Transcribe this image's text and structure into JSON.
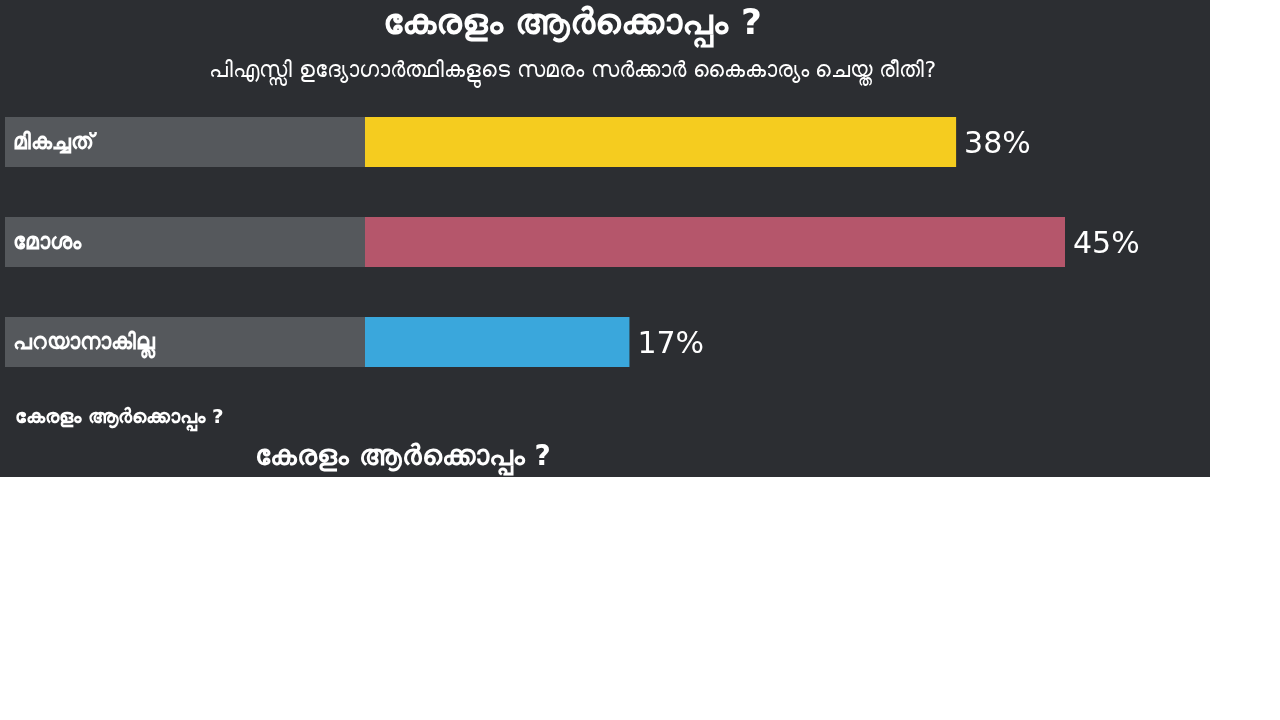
{
  "chart_data": {
    "type": "bar",
    "orientation": "horizontal",
    "title": "കേരളം ആർക്കൊപ്പം ?",
    "subtitle": "പിഎസ്സി ഉദ്യോഗാർത്ഥികളുടെ സമരം സർക്കാർ കൈകാര്യം ചെയ്ത രീതി?",
    "categories": [
      "മികച്ചത്",
      "മോശം",
      "പറയാനാകില്ല"
    ],
    "values": [
      38,
      45,
      17
    ],
    "colors": [
      "#f5cc1f",
      "#b5566b",
      "#3aa7dc"
    ],
    "value_labels": [
      "38%",
      "45%",
      "17%"
    ],
    "annotations": [
      "കേരളം ആർക്കൊപ്പം ?",
      "കേരളം ആർക്കൊപ്പം ?"
    ]
  }
}
